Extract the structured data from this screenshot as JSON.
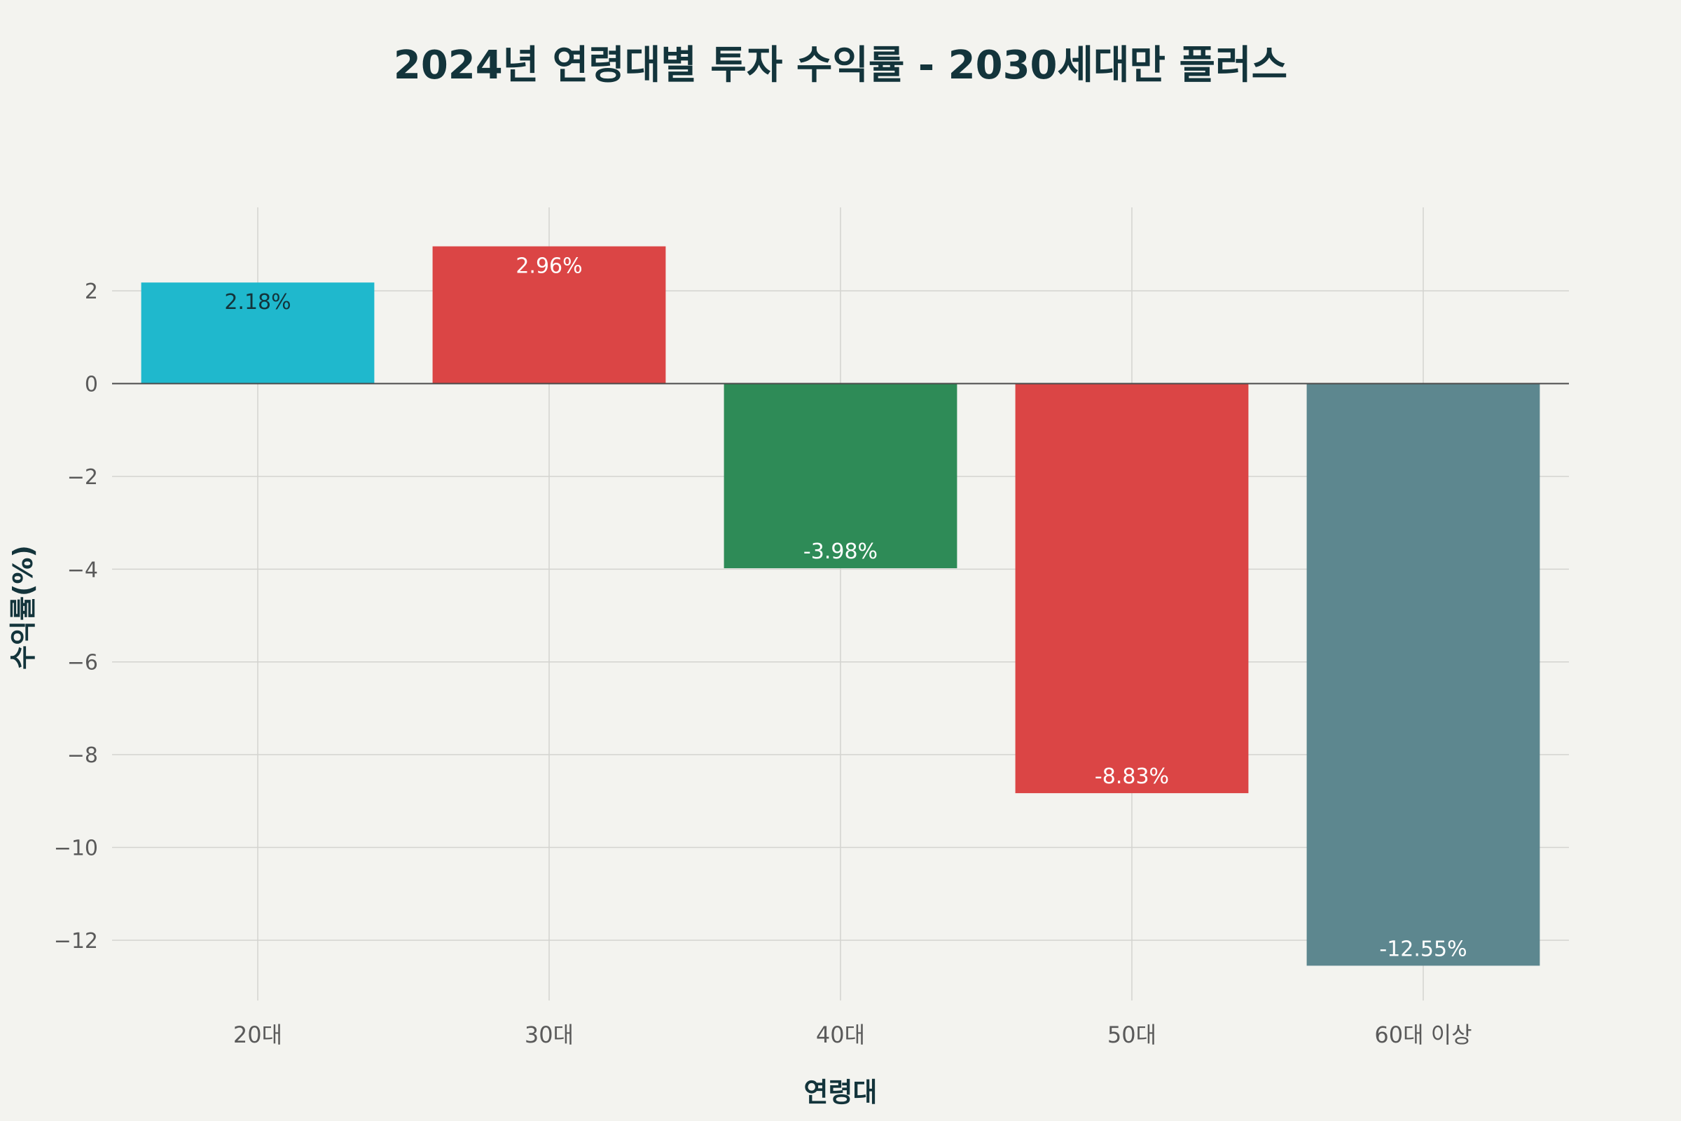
{
  "chart_data": {
    "type": "bar",
    "title": "2024년 연령대별 투자 수익률 - 2030세대만 플러스",
    "xlabel": "연령대",
    "ylabel": "수익률(%)",
    "categories": [
      "20대",
      "30대",
      "40대",
      "50대",
      "60대 이상"
    ],
    "values": [
      2.18,
      2.96,
      -3.98,
      -8.83,
      -12.55
    ],
    "value_labels": [
      "2.18%",
      "2.96%",
      "-3.98%",
      "-8.83%",
      "-12.55%"
    ],
    "colors": [
      "#1fb8cd",
      "#db4545",
      "#2e8b57",
      "#db4545",
      "#5d878f"
    ],
    "label_colors": [
      "#13343b",
      "#ffffff",
      "#ffffff",
      "#ffffff",
      "#ffffff"
    ],
    "ylim": [
      -13.3,
      3.8
    ],
    "yticks": [
      2,
      0,
      -2,
      -4,
      -6,
      -8,
      -10,
      -12
    ],
    "ytick_labels": [
      "2",
      "0",
      "−2",
      "−4",
      "−6",
      "−8",
      "−10",
      "−12"
    ],
    "grid": true,
    "legend": false
  }
}
